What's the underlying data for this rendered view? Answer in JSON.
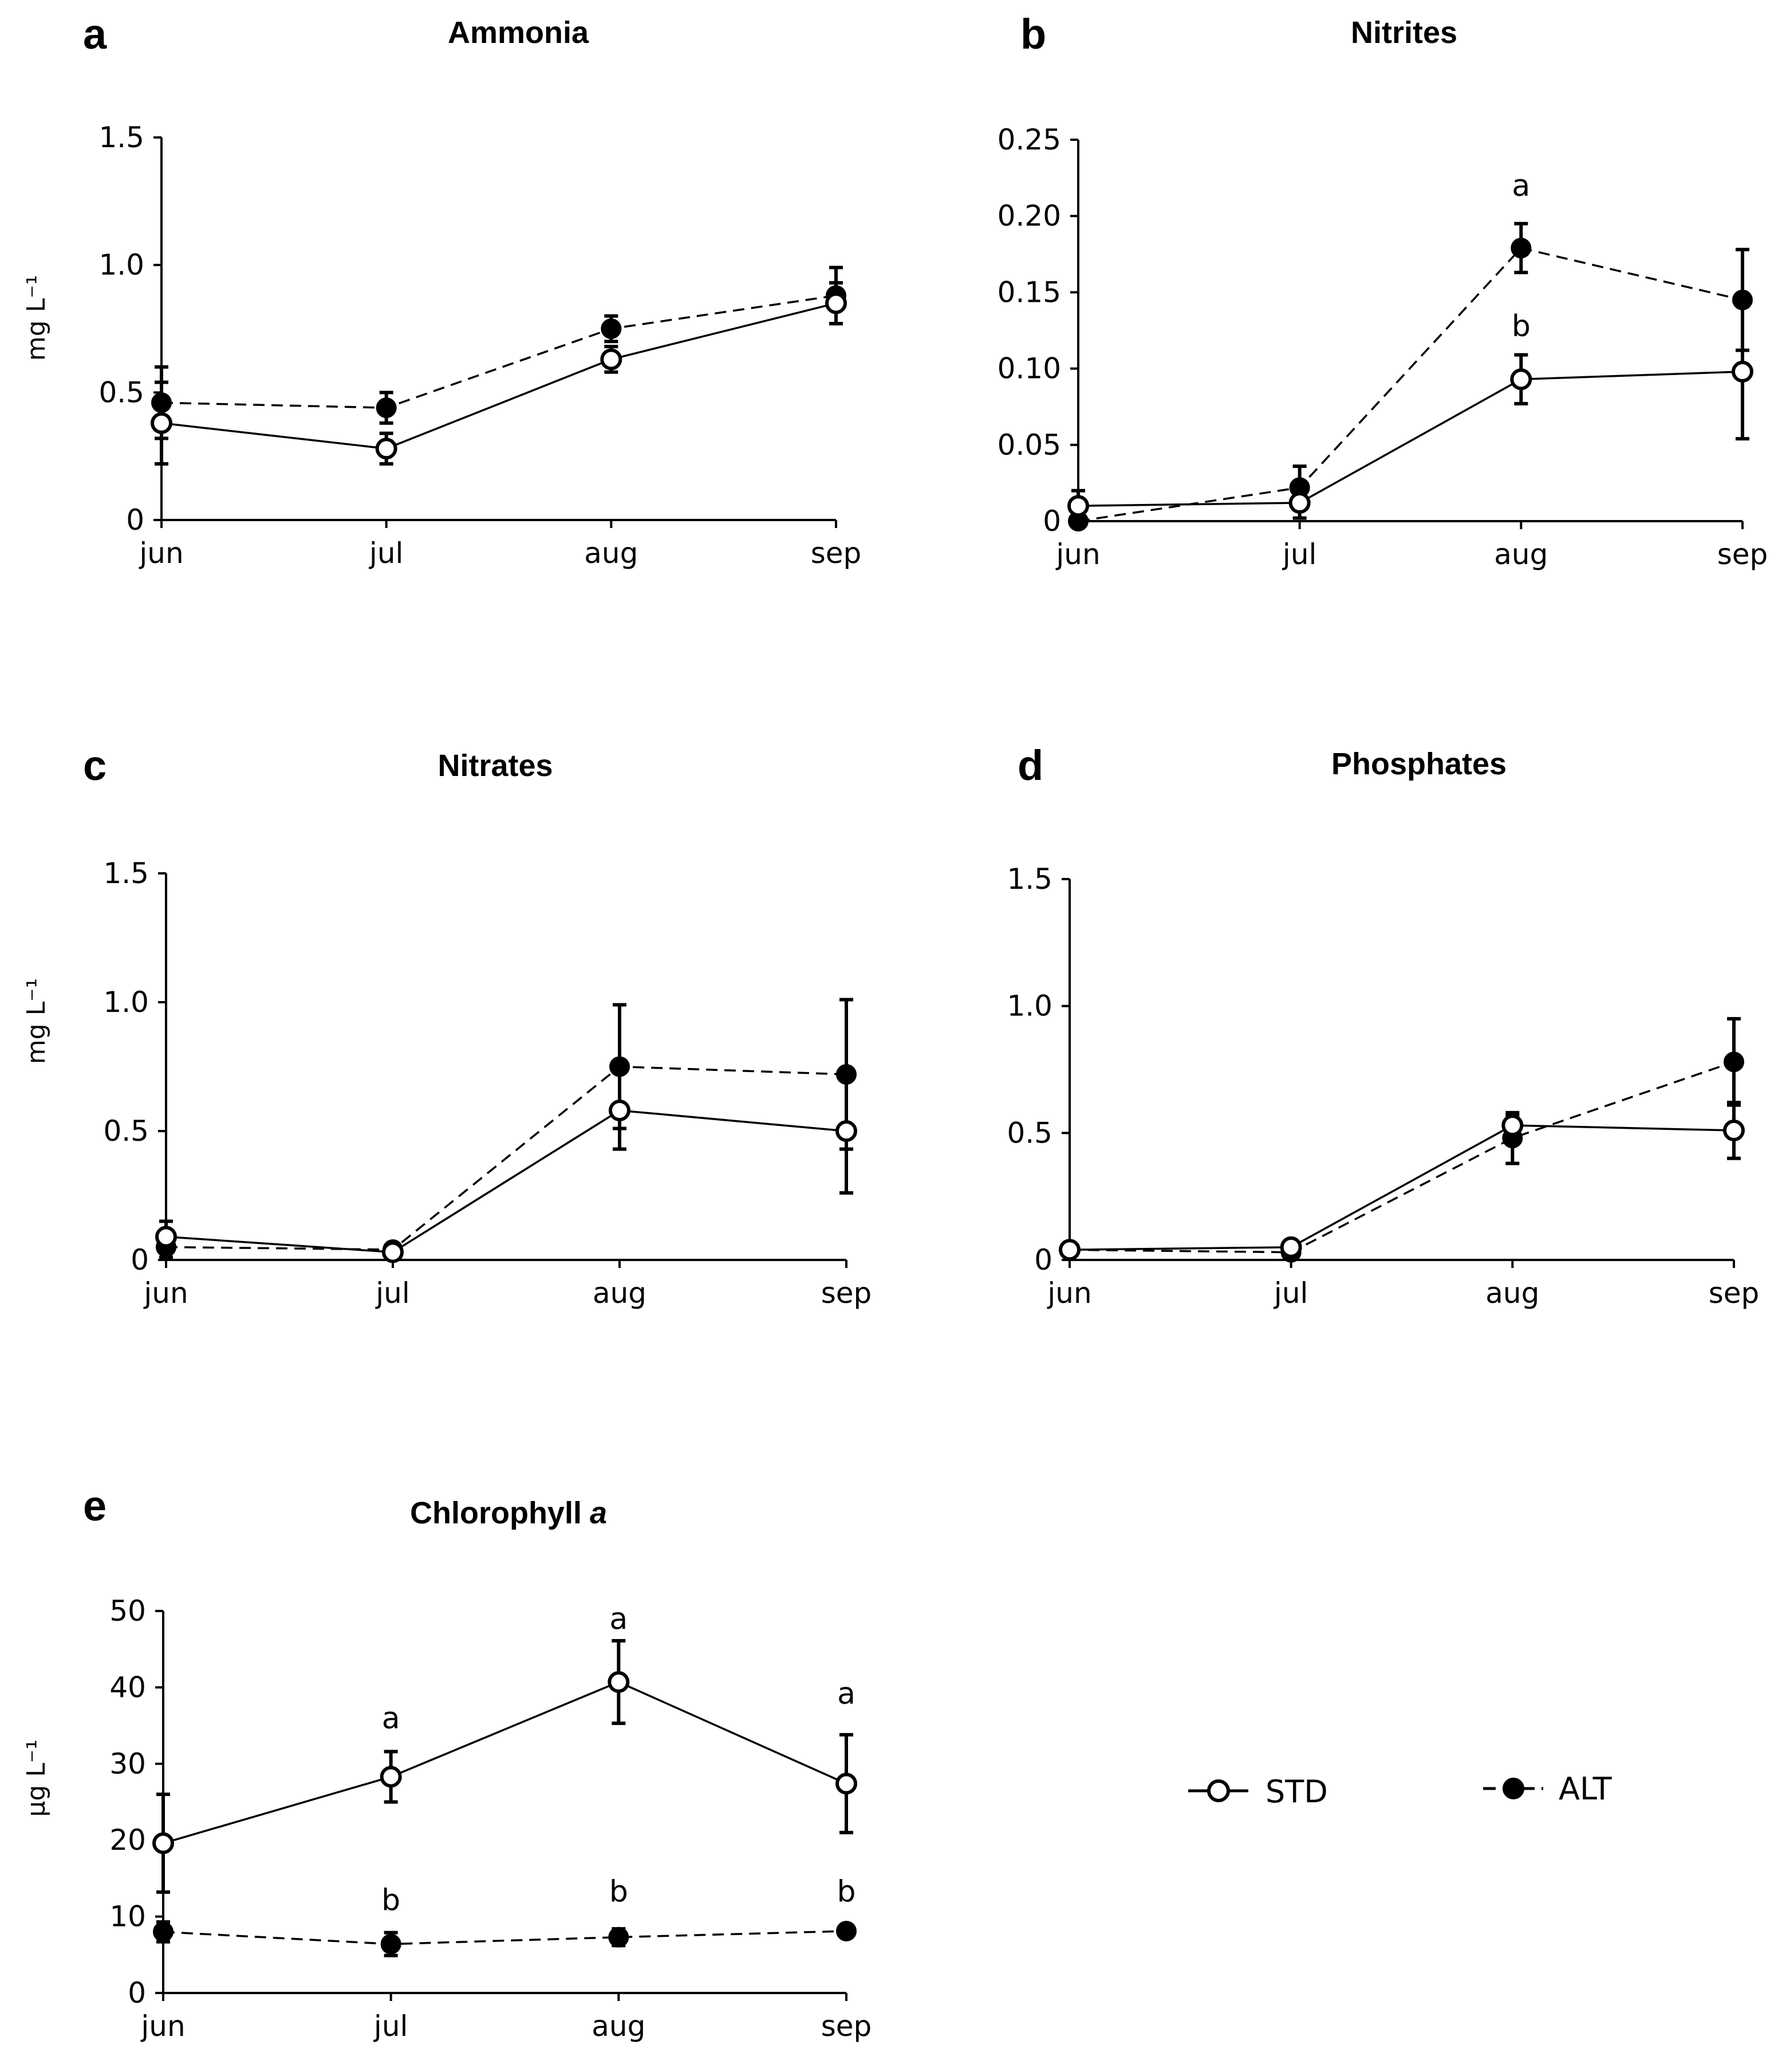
{
  "legend": {
    "std": {
      "label": "STD",
      "marker": "open-circle",
      "line": "solid"
    },
    "alt": {
      "label": "ALT",
      "marker": "filled-circle",
      "line": "dashed"
    }
  },
  "colors": {
    "ink": "#000000",
    "background": "#ffffff"
  },
  "chart_data": [
    {
      "id": "a",
      "letter": "a",
      "title": "Ammonia",
      "type": "line",
      "categories": [
        "jun",
        "jul",
        "aug",
        "sep"
      ],
      "ylabel": "mg L⁻¹",
      "ylim": [
        0,
        1.5
      ],
      "yticks": [
        0,
        0.5,
        1.0,
        1.5
      ],
      "ytick_labels": [
        "0",
        "0.5",
        "1.0",
        "1.5"
      ],
      "series": [
        {
          "name": "STD",
          "values": [
            0.38,
            0.28,
            0.63,
            0.85
          ],
          "errors": [
            0.16,
            0.06,
            0.05,
            0.08
          ]
        },
        {
          "name": "ALT",
          "values": [
            0.46,
            0.44,
            0.75,
            0.88
          ],
          "errors": [
            0.14,
            0.06,
            0.05,
            0.11
          ]
        }
      ],
      "annotations": []
    },
    {
      "id": "b",
      "letter": "b",
      "title": "Nitrites",
      "type": "line",
      "categories": [
        "jun",
        "jul",
        "aug",
        "sep"
      ],
      "ylabel": "",
      "ylim": [
        0,
        0.25
      ],
      "yticks": [
        0,
        0.05,
        0.1,
        0.15,
        0.2,
        0.25
      ],
      "ytick_labels": [
        "0",
        "0.05",
        "0.10",
        "0.15",
        "0.20",
        "0.25"
      ],
      "series": [
        {
          "name": "STD",
          "values": [
            0.01,
            0.012,
            0.093,
            0.098
          ],
          "errors": [
            0.01,
            0.01,
            0.016,
            0.044
          ]
        },
        {
          "name": "ALT",
          "values": [
            0.0,
            0.022,
            0.179,
            0.145
          ],
          "errors": [
            0.0,
            0.014,
            0.016,
            0.033
          ]
        }
      ],
      "annotations": [
        {
          "text": "a",
          "category": "aug",
          "value": 0.22
        },
        {
          "text": "b",
          "category": "aug",
          "value": 0.128
        }
      ]
    },
    {
      "id": "c",
      "letter": "c",
      "title": "Nitrates",
      "type": "line",
      "categories": [
        "jun",
        "jul",
        "aug",
        "sep"
      ],
      "ylabel": "mg L⁻¹",
      "ylim": [
        0,
        1.5
      ],
      "yticks": [
        0,
        0.5,
        1.0,
        1.5
      ],
      "ytick_labels": [
        "0",
        "0.5",
        "1.0",
        "1.5"
      ],
      "series": [
        {
          "name": "STD",
          "values": [
            0.09,
            0.03,
            0.58,
            0.5
          ],
          "errors": [
            0.06,
            0.01,
            0.15,
            0.24
          ]
        },
        {
          "name": "ALT",
          "values": [
            0.05,
            0.04,
            0.75,
            0.72
          ],
          "errors": [
            0.04,
            0.01,
            0.24,
            0.29
          ]
        }
      ],
      "annotations": []
    },
    {
      "id": "d",
      "letter": "d",
      "title": "Phosphates",
      "type": "line",
      "categories": [
        "jun",
        "jul",
        "aug",
        "sep"
      ],
      "ylabel": "",
      "ylim": [
        0,
        1.5
      ],
      "yticks": [
        0,
        0.5,
        1.0,
        1.5
      ],
      "ytick_labels": [
        "0",
        "0.5",
        "1.0",
        "1.5"
      ],
      "series": [
        {
          "name": "STD",
          "values": [
            0.04,
            0.05,
            0.53,
            0.51
          ],
          "errors": [
            0.01,
            0.01,
            0.04,
            0.11
          ]
        },
        {
          "name": "ALT",
          "values": [
            0.04,
            0.03,
            0.48,
            0.78
          ],
          "errors": [
            0.01,
            0.01,
            0.1,
            0.17
          ]
        }
      ],
      "annotations": []
    },
    {
      "id": "e",
      "letter": "e",
      "title": "Chlorophyll",
      "title_italic": "a",
      "type": "line",
      "categories": [
        "jun",
        "jul",
        "aug",
        "sep"
      ],
      "ylabel": "μg L⁻¹",
      "ylim": [
        0,
        50
      ],
      "yticks": [
        0,
        10,
        20,
        30,
        40,
        50
      ],
      "ytick_labels": [
        "0",
        "10",
        "20",
        "30",
        "40",
        "50"
      ],
      "series": [
        {
          "name": "STD",
          "values": [
            19.6,
            28.3,
            40.7,
            27.4
          ],
          "errors": [
            6.4,
            3.3,
            5.4,
            6.4
          ]
        },
        {
          "name": "ALT",
          "values": [
            8.0,
            6.4,
            7.3,
            8.1
          ],
          "errors": [
            1.3,
            1.5,
            1.1,
            0.3
          ]
        }
      ],
      "annotations": [
        {
          "text": "a",
          "category": "jul",
          "value": 36.0
        },
        {
          "text": "a",
          "category": "aug",
          "value": 49.0
        },
        {
          "text": "a",
          "category": "sep",
          "value": 39.2
        },
        {
          "text": "b",
          "category": "jul",
          "value": 12.2
        },
        {
          "text": "b",
          "category": "aug",
          "value": 13.3
        },
        {
          "text": "b",
          "category": "sep",
          "value": 13.3
        }
      ]
    }
  ]
}
